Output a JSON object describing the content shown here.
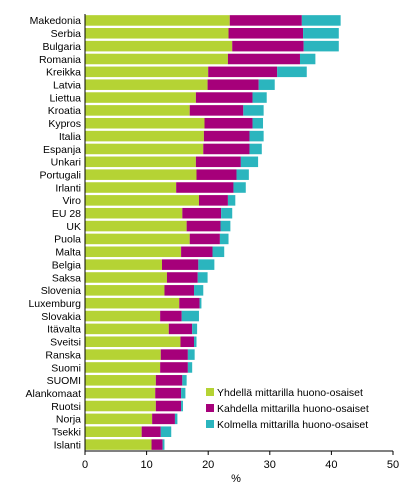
{
  "chart_data": {
    "type": "bar",
    "orientation": "horizontal",
    "stacked": true,
    "categories": [
      "Makedonia",
      "Serbia",
      "Bulgaria",
      "Romania",
      "Kreikka",
      "Latvia",
      "Liettua",
      "Kroatia",
      "Kypros",
      "Italia",
      "Espanja",
      "Unkari",
      "Portugali",
      "Irlanti",
      "Viro",
      "EU 28",
      "UK",
      "Puola",
      "Malta",
      "Belgia",
      "Saksa",
      "Slovenia",
      "Luxemburg",
      "Slovakia",
      "Itävalta",
      "Sveitsi",
      "Ranska",
      "Suomi",
      "SUOMI",
      "Alankomaat",
      "Ruotsi",
      "Norja",
      "Tsekki",
      "Islanti"
    ],
    "series": [
      {
        "name": "Yhdellä mittarilla huono-osaiset",
        "color": "#b5d334",
        "values": [
          23.5,
          23.3,
          23.9,
          23.2,
          20.0,
          19.9,
          18.0,
          17.0,
          19.4,
          19.3,
          19.2,
          18.0,
          18.1,
          14.8,
          18.5,
          15.8,
          16.5,
          17.0,
          15.6,
          12.5,
          13.3,
          12.9,
          15.3,
          12.2,
          13.6,
          15.5,
          12.3,
          12.2,
          11.5,
          11.4,
          11.5,
          10.9,
          9.2,
          10.8
        ]
      },
      {
        "name": "Kahdella mittarilla huono-osaiset",
        "color": "#a6007a",
        "values": [
          11.7,
          12.1,
          11.6,
          11.7,
          11.2,
          8.3,
          9.2,
          8.7,
          7.8,
          7.4,
          7.5,
          7.3,
          6.5,
          9.3,
          4.7,
          6.3,
          5.5,
          4.9,
          5.1,
          5.9,
          5.0,
          4.8,
          3.3,
          3.5,
          3.8,
          2.2,
          4.4,
          4.5,
          4.3,
          4.2,
          4.1,
          3.7,
          3.1,
          1.8
        ]
      },
      {
        "name": "Kolmella mittarilla huono-osaiset",
        "color": "#2bb5be",
        "values": [
          6.3,
          5.8,
          5.7,
          2.5,
          4.8,
          2.6,
          2.3,
          3.3,
          1.7,
          2.3,
          2.0,
          2.8,
          2.0,
          2.0,
          1.2,
          1.8,
          1.6,
          1.4,
          1.9,
          2.6,
          1.6,
          1.5,
          0.3,
          2.8,
          0.8,
          0.4,
          1.1,
          0.7,
          0.7,
          0.7,
          0.3,
          0.4,
          1.7,
          0.3
        ]
      }
    ],
    "xlabel": "%",
    "xlim": [
      0,
      50
    ],
    "xticks": [
      0,
      10,
      20,
      30,
      40,
      50
    ],
    "grid": false,
    "legend_position": "bottom-right"
  }
}
